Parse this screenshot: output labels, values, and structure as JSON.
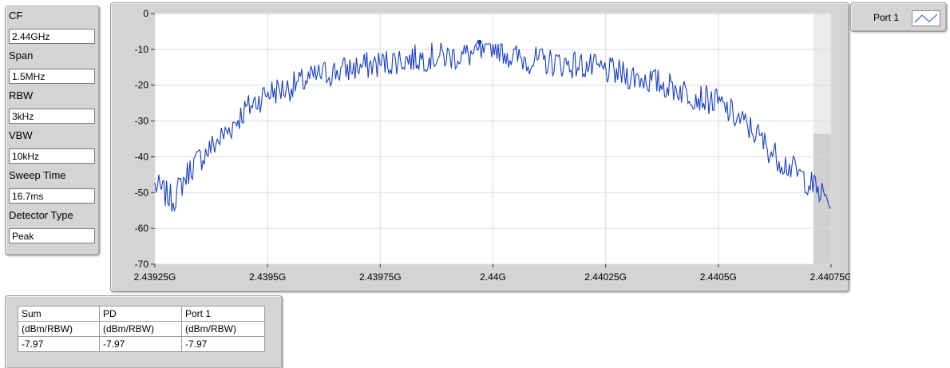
{
  "settings": {
    "cf_label": "CF",
    "cf_value": "2.44GHz",
    "span_label": "Span",
    "span_value": "1.5MHz",
    "rbw_label": "RBW",
    "rbw_value": "3kHz",
    "vbw_label": "VBW",
    "vbw_value": "10kHz",
    "sweep_label": "Sweep Time",
    "sweep_value": "16.7ms",
    "detector_label": "Detector Type",
    "detector_value": "Peak"
  },
  "legend": {
    "name": "Port 1",
    "color": "#1a3fc4"
  },
  "table": {
    "headers": [
      "Sum",
      "PD",
      "Port 1"
    ],
    "units": [
      "(dBm/RBW)",
      "(dBm/RBW)",
      "(dBm/RBW)"
    ],
    "values": [
      "-7.97",
      "-7.97",
      "-7.97"
    ]
  },
  "chart_data": {
    "type": "line",
    "xlim": [
      2.43925,
      2.44075
    ],
    "ylim": [
      -70,
      0
    ],
    "x_ticks": [
      "2.43925G",
      "2.4395G",
      "2.43975G",
      "2.44G",
      "2.44025G",
      "2.4405G",
      "2.44075G"
    ],
    "x_tick_values": [
      2.43925,
      2.4395,
      2.43975,
      2.44,
      2.44025,
      2.4405,
      2.44075
    ],
    "y_ticks": [
      0,
      -10,
      -20,
      -30,
      -40,
      -50,
      -60,
      -70
    ],
    "grid": true,
    "legend_position": "top-right",
    "series": [
      {
        "name": "Port 1",
        "color": "#1a3fc4",
        "x": [
          2.43925,
          2.43929,
          2.43933,
          2.43937,
          2.43941,
          2.43945,
          2.4395,
          2.43954,
          2.43958,
          2.43962,
          2.43966,
          2.4397,
          2.43975,
          2.43979,
          2.43983,
          2.43987,
          2.43991,
          2.43995,
          2.43998,
          2.44,
          2.44004,
          2.44008,
          2.44012,
          2.44016,
          2.4402,
          2.44025,
          2.44029,
          2.44033,
          2.44037,
          2.44041,
          2.44045,
          2.4405,
          2.44054,
          2.44058,
          2.44062,
          2.44066,
          2.4407,
          2.44075
        ],
        "y": [
          -48,
          -52,
          -43,
          -38,
          -33,
          -27,
          -22,
          -21,
          -19,
          -17,
          -16,
          -15,
          -14,
          -13,
          -12.5,
          -12,
          -12,
          -11.5,
          -11,
          -8,
          -12,
          -13,
          -13.5,
          -14,
          -14.5,
          -16,
          -17,
          -18,
          -19.5,
          -21,
          -23,
          -25,
          -29,
          -33,
          -39,
          -43,
          -47,
          -53
        ]
      }
    ],
    "marker": {
      "x": 2.43997,
      "y": -7.97
    }
  }
}
